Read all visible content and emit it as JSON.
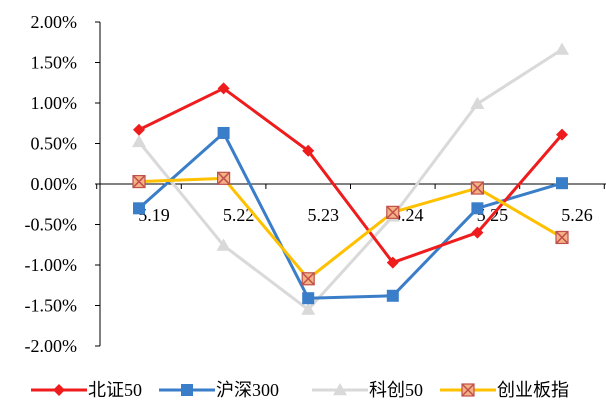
{
  "chart_data": {
    "type": "line",
    "title": "",
    "xlabel": "",
    "ylabel": "",
    "categories": [
      "5.19",
      "5.22",
      "5.23",
      "5.24",
      "5.25",
      "5.26"
    ],
    "ylim": [
      -2.0,
      2.0
    ],
    "y_ticks": [
      2.0,
      1.5,
      1.0,
      0.5,
      0.0,
      -0.5,
      -1.0,
      -1.5,
      -2.0
    ],
    "y_tick_labels": [
      "2.00%",
      "1.50%",
      "1.00%",
      "0.50%",
      "0.00%",
      "-0.50%",
      "-1.00%",
      "-1.50%",
      "-2.00%"
    ],
    "y_unit": "%",
    "grid": false,
    "legend_position": "bottom",
    "series": [
      {
        "name": "北证50",
        "color": "#EE1C1C",
        "marker": "diamond",
        "values": [
          0.67,
          1.18,
          0.41,
          -0.97,
          -0.6,
          0.61
        ]
      },
      {
        "name": "沪深300",
        "color": "#3A7DC8",
        "marker": "square",
        "values": [
          -0.3,
          0.63,
          -1.41,
          -1.38,
          -0.3,
          0.01
        ]
      },
      {
        "name": "科创50",
        "color": "#D9D9D9",
        "marker": "triangle",
        "values": [
          0.52,
          -0.76,
          -1.55,
          -0.4,
          0.99,
          1.66
        ]
      },
      {
        "name": "创业板指",
        "color": "#FFC000",
        "marker": "xsquare",
        "values": [
          0.03,
          0.07,
          -1.17,
          -0.35,
          -0.05,
          -0.66
        ]
      }
    ]
  }
}
